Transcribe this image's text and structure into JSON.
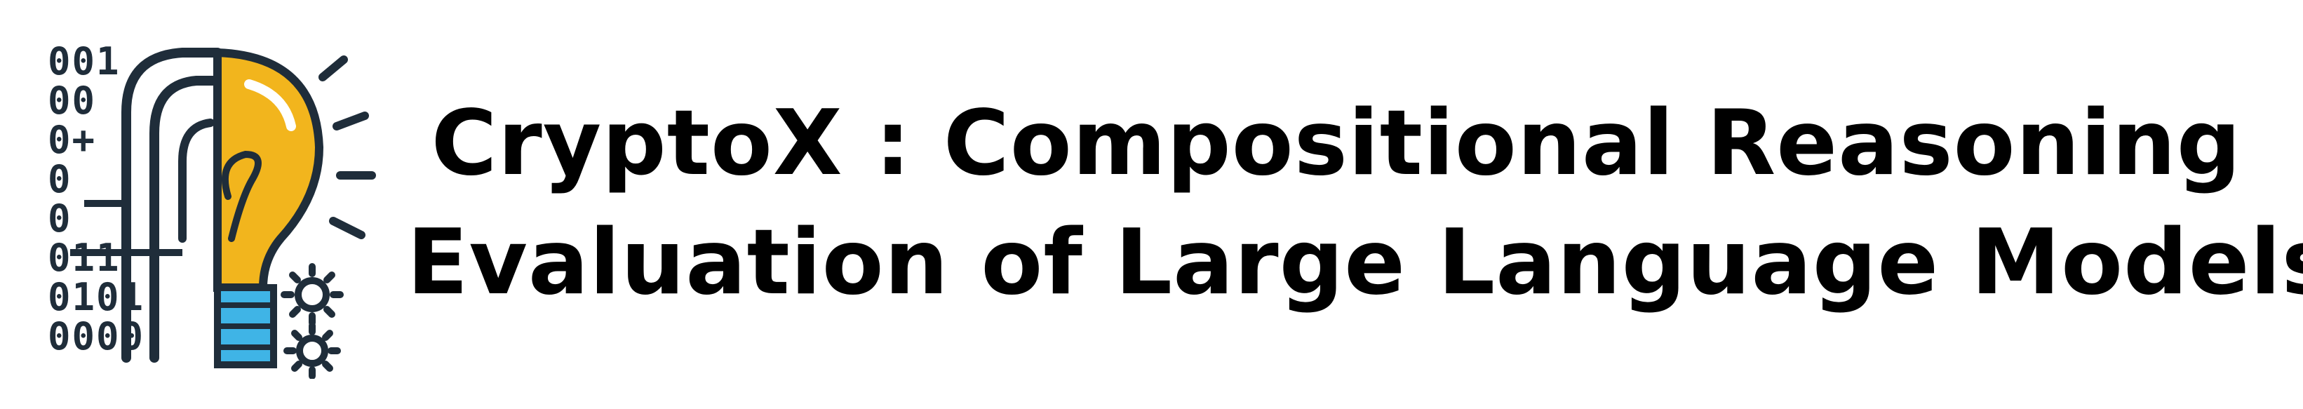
{
  "logo": {
    "binary_rows": [
      "001",
      "00",
      "0+",
      "0",
      "0",
      "011",
      "0101",
      "0000"
    ],
    "colors": {
      "bulb_yellow": "#f2b51d",
      "bulb_blue": "#3fb4e6",
      "ink": "#1f2d3a"
    },
    "icons": [
      "lightbulb-icon",
      "gear-icon",
      "gear-icon"
    ]
  },
  "title": {
    "line1": "CryptoX : Compositional Reasoning",
    "line2": "Evaluation of Large Language Models"
  }
}
